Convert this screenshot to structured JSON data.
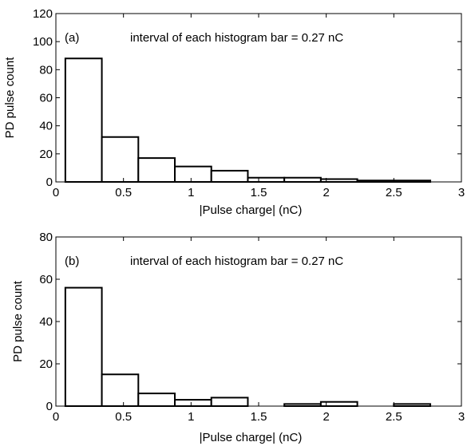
{
  "chart_data": [
    {
      "type": "bar",
      "panel_label": "(a)",
      "annotation": "interval of each histogram bar = 0.27 nC",
      "xlabel": "|Pulse charge| (nC)",
      "ylabel": "PD pulse count",
      "xlim": [
        0,
        3
      ],
      "ylim": [
        0,
        120
      ],
      "x_ticks": [
        0,
        0.5,
        1,
        1.5,
        2,
        2.5,
        3
      ],
      "x_tick_labels": [
        "0",
        "0.5",
        "1",
        "1.5",
        "2",
        "2.5",
        "3"
      ],
      "y_ticks": [
        0,
        20,
        40,
        60,
        80,
        100,
        120
      ],
      "y_tick_labels": [
        "0",
        "20",
        "40",
        "60",
        "80",
        "100",
        "120"
      ],
      "bin_edges": [
        0.07,
        0.34,
        0.61,
        0.88,
        1.15,
        1.42,
        1.69,
        1.96,
        2.23,
        2.5,
        2.77
      ],
      "values": [
        88,
        32,
        17,
        11,
        8,
        3,
        3,
        2,
        1,
        1
      ],
      "grid": false,
      "bar_color": "#ffffff",
      "edge_color": "#000000"
    },
    {
      "type": "bar",
      "panel_label": "(b)",
      "annotation": "interval of each histogram bar = 0.27 nC",
      "xlabel": "|Pulse charge| (nC)",
      "ylabel": "PD pulse count",
      "xlim": [
        0,
        3
      ],
      "ylim": [
        0,
        80
      ],
      "x_ticks": [
        0,
        0.5,
        1,
        1.5,
        2,
        2.5,
        3
      ],
      "x_tick_labels": [
        "0",
        "0.5",
        "1",
        "1.5",
        "2",
        "2.5",
        "3"
      ],
      "y_ticks": [
        0,
        20,
        40,
        60,
        80
      ],
      "y_tick_labels": [
        "0",
        "20",
        "40",
        "60",
        "80"
      ],
      "bin_edges": [
        0.07,
        0.34,
        0.61,
        0.88,
        1.15,
        1.42,
        1.69,
        1.96,
        2.23,
        2.5,
        2.77
      ],
      "values": [
        56,
        15,
        6,
        3,
        4,
        0,
        1,
        2,
        0,
        1
      ],
      "grid": false,
      "bar_color": "#ffffff",
      "edge_color": "#000000"
    }
  ]
}
